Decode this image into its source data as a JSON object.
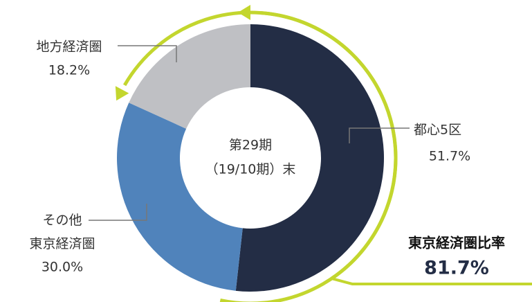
{
  "chart_data": {
    "type": "donut",
    "center_text": [
      "第29期",
      "（19/10期）末"
    ],
    "categories": [
      "都心5区",
      "その他\n東京経済圏",
      "地方経済圏"
    ],
    "values": [
      51.7,
      30.0,
      18.2
    ],
    "value_labels": [
      "51.7%",
      "30.0%",
      "18.2%"
    ],
    "colors": [
      "#232d45",
      "#5083bb",
      "#bfc0c4"
    ],
    "summary": {
      "title": "東京経済圏比率",
      "values": [
        81.7
      ],
      "value_labels": [
        "81.7%"
      ],
      "color": "#c3d62e"
    }
  }
}
